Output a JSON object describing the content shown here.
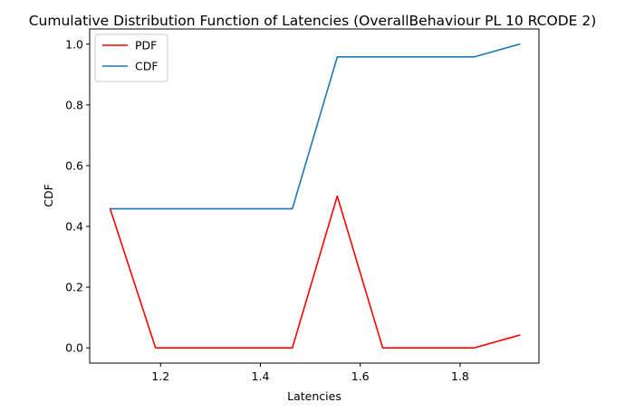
{
  "chart_data": {
    "type": "line",
    "title": "Cumulative Distribution Function of Latencies (OverallBehaviour PL 10 RCODE 2)",
    "xlabel": "Latencies",
    "ylabel": "CDF",
    "xlim": [
      1.058,
      1.958
    ],
    "ylim": [
      -0.05,
      1.05
    ],
    "xticks": [
      1.2,
      1.4,
      1.6,
      1.8
    ],
    "xtick_labels": [
      "1.2",
      "1.4",
      "1.6",
      "1.8"
    ],
    "yticks": [
      0.0,
      0.2,
      0.4,
      0.6,
      0.8,
      1.0
    ],
    "ytick_labels": [
      "0.0",
      "0.2",
      "0.4",
      "0.6",
      "0.8",
      "1.0"
    ],
    "grid": false,
    "legend_position": "top-left",
    "x": [
      1.099,
      1.19,
      1.282,
      1.373,
      1.464,
      1.554,
      1.645,
      1.737,
      1.828,
      1.919
    ],
    "series": [
      {
        "name": "PDF",
        "color": "#ff0000",
        "values": [
          0.458,
          0.0,
          0.0,
          0.0,
          0.0,
          0.5,
          0.0,
          0.0,
          0.0,
          0.042
        ]
      },
      {
        "name": "CDF",
        "color": "#1f77b4",
        "values": [
          0.458,
          0.458,
          0.458,
          0.458,
          0.458,
          0.958,
          0.958,
          0.958,
          0.958,
          1.0
        ]
      }
    ]
  }
}
